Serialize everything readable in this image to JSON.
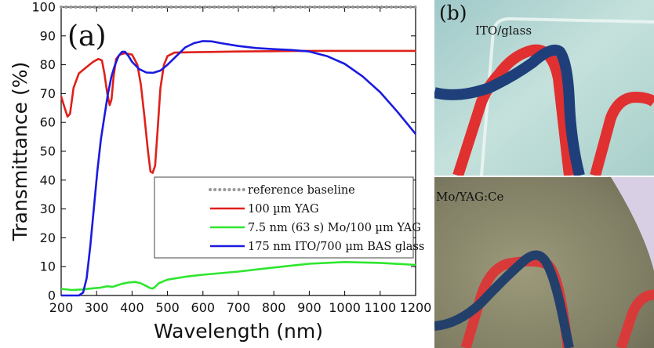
{
  "chart_data": {
    "type": "line",
    "panel_label": "(a)",
    "xlabel": "Wavelength (nm)",
    "ylabel": "Transmittance (%)",
    "xlim": [
      200,
      1200
    ],
    "ylim": [
      0,
      100
    ],
    "xticks": [
      200,
      300,
      400,
      500,
      600,
      700,
      800,
      900,
      1000,
      1100,
      1200
    ],
    "yticks": [
      0,
      10,
      20,
      30,
      40,
      50,
      60,
      70,
      80,
      90,
      100
    ],
    "grid": false,
    "legend_position": "bottom-right",
    "series": [
      {
        "name": "reference baseline",
        "color": "#999999",
        "style": "dotted",
        "x": [
          200,
          300,
          400,
          500,
          600,
          700,
          800,
          900,
          1000,
          1100,
          1200
        ],
        "y": [
          100,
          100,
          100,
          100,
          100,
          100,
          100,
          100,
          100,
          100,
          100
        ]
      },
      {
        "name": "100 µm YAG",
        "color": "#e0201a",
        "style": "solid",
        "x": [
          200,
          210,
          218,
          225,
          235,
          250,
          270,
          290,
          305,
          315,
          322,
          330,
          337,
          342,
          348,
          355,
          365,
          380,
          400,
          415,
          425,
          435,
          445,
          452,
          458,
          465,
          472,
          480,
          490,
          500,
          520,
          550,
          600,
          700,
          800,
          900,
          1000,
          1100,
          1200
        ],
        "y": [
          69,
          65,
          62,
          63,
          72,
          77,
          79,
          81,
          82,
          81.5,
          77,
          70,
          66,
          68,
          76,
          82,
          83.5,
          84,
          83.5,
          80,
          73,
          62,
          50,
          43,
          42.5,
          45,
          57,
          72,
          80,
          83,
          84.2,
          84.3,
          84.4,
          84.6,
          84.7,
          84.8,
          84.8,
          84.8,
          84.8
        ]
      },
      {
        "name": "7.5 nm (63 s) Mo/100 µm YAG",
        "color": "#2ee62e",
        "style": "solid",
        "x": [
          200,
          230,
          260,
          290,
          310,
          330,
          345,
          355,
          370,
          390,
          410,
          425,
          440,
          450,
          458,
          465,
          475,
          490,
          500,
          550,
          600,
          700,
          800,
          900,
          1000,
          1100,
          1200
        ],
        "y": [
          2.3,
          1.9,
          2.1,
          2.5,
          2.7,
          3.2,
          3.0,
          3.4,
          4.0,
          4.5,
          4.7,
          4.2,
          3.3,
          2.6,
          2.4,
          3.0,
          4.2,
          5.0,
          5.5,
          6.5,
          7.2,
          8.3,
          9.7,
          11.0,
          11.6,
          11.3,
          10.6
        ]
      },
      {
        "name": "175 nm ITO/700 µm BAS glass",
        "color": "#1a1ae0",
        "style": "solid",
        "x": [
          200,
          250,
          262,
          272,
          282,
          292,
          302,
          312,
          322,
          332,
          342,
          352,
          362,
          372,
          380,
          390,
          400,
          420,
          440,
          460,
          480,
          500,
          525,
          550,
          575,
          600,
          625,
          650,
          700,
          750,
          800,
          850,
          900,
          950,
          1000,
          1050,
          1100,
          1150,
          1200
        ],
        "y": [
          0,
          0,
          1,
          6,
          17,
          30,
          43,
          54,
          62,
          70,
          76,
          80,
          83,
          84.5,
          84.5,
          83,
          81,
          78.5,
          77.3,
          77.2,
          78,
          80,
          83,
          86,
          87.5,
          88.2,
          88.1,
          87.5,
          86.5,
          85.8,
          85.4,
          85.1,
          84.6,
          83,
          80.3,
          76,
          70.5,
          63.5,
          56
        ]
      }
    ]
  },
  "photos": {
    "panel_label": "(b)",
    "top_label": "ITO/glass",
    "bottom_label": "Mo/YAG:Ce"
  }
}
